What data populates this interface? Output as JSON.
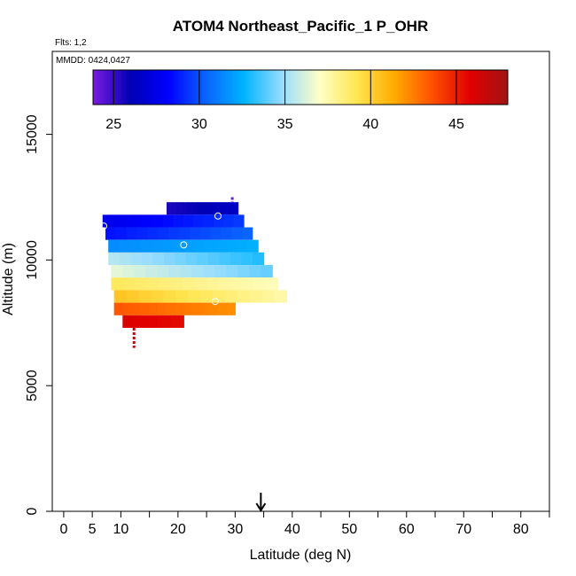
{
  "chart_data": {
    "type": "heatmap",
    "title": "ATOM4 Northeast_Pacific_1 P_OHR",
    "flights_label": "Flts: 1,2",
    "dates_label": "MMDD: 0424,0427",
    "xlabel": "Latitude (deg N)",
    "ylabel": "Altitude (m)",
    "xlim": [
      -2,
      85
    ],
    "ylim": [
      0,
      18300
    ],
    "x_ticks": [
      0,
      5,
      10,
      15,
      20,
      25,
      30,
      35,
      40,
      45,
      50,
      55,
      60,
      65,
      70,
      75,
      80,
      85
    ],
    "x_tick_labels": [
      "0",
      "5",
      "10",
      "20",
      "30",
      "40",
      "50",
      "60",
      "70",
      "80"
    ],
    "x_tick_label_values": [
      0,
      5,
      10,
      20,
      30,
      40,
      50,
      60,
      70,
      80
    ],
    "y_ticks": [
      0,
      5000,
      10000,
      15000
    ],
    "y_tick_labels": [
      "0",
      "5000",
      "10000",
      "15000"
    ],
    "colorbar": {
      "range": [
        23.8,
        48
      ],
      "ticks": [
        25,
        30,
        35,
        40,
        45
      ],
      "tick_labels": [
        "25",
        "30",
        "35",
        "40",
        "45"
      ],
      "colors": [
        "#7a1be0",
        "#0000b4",
        "#0000ff",
        "#0a64ff",
        "#00b4ff",
        "#96dcff",
        "#ffffc8",
        "#ffe650",
        "#ffaa00",
        "#ff5000",
        "#e00000",
        "#a01414"
      ]
    },
    "bands": [
      {
        "alt_bottom": 11800,
        "alt_top": 12300,
        "lat_start": 18,
        "lat_end": 30.5,
        "start_value": 25.5,
        "end_value": 26.5
      },
      {
        "alt_bottom": 11300,
        "alt_top": 11800,
        "lat_start": 6.8,
        "lat_end": 31.5,
        "start_value": 27.5,
        "end_value": 29.5
      },
      {
        "alt_bottom": 10800,
        "alt_top": 11300,
        "lat_start": 7.3,
        "lat_end": 33,
        "start_value": 28.5,
        "end_value": 30.5
      },
      {
        "alt_bottom": 10300,
        "alt_top": 10800,
        "lat_start": 7.8,
        "lat_end": 34,
        "start_value": 31.5,
        "end_value": 32.5
      },
      {
        "alt_bottom": 9800,
        "alt_top": 10300,
        "lat_start": 7.8,
        "lat_end": 35,
        "start_value": 35.5,
        "end_value": 33
      },
      {
        "alt_bottom": 9300,
        "alt_top": 9800,
        "lat_start": 8.3,
        "lat_end": 36.5,
        "start_value": 36.5,
        "end_value": 34
      },
      {
        "alt_bottom": 8800,
        "alt_top": 9300,
        "lat_start": 8.3,
        "lat_end": 37.5,
        "start_value": 39,
        "end_value": 37.2
      },
      {
        "alt_bottom": 8300,
        "alt_top": 8800,
        "lat_start": 8.8,
        "lat_end": 39,
        "start_value": 40.5,
        "end_value": 37.5
      },
      {
        "alt_bottom": 7800,
        "alt_top": 8300,
        "lat_start": 8.8,
        "lat_end": 30,
        "start_value": 43.5,
        "end_value": 42
      },
      {
        "alt_bottom": 7300,
        "alt_top": 7800,
        "lat_start": 10.3,
        "lat_end": 21,
        "start_value": 46,
        "end_value": 45.5
      }
    ],
    "markers": [
      {
        "lat": 27,
        "alt": 11750
      },
      {
        "lat": 7,
        "alt": 11350
      },
      {
        "lat": 21,
        "alt": 10600
      },
      {
        "lat": 26.5,
        "alt": 8350
      },
      {
        "lat": 9,
        "alt": 7600
      }
    ],
    "vertical_segments": [
      {
        "lat": 29.5,
        "alt_bottom": 12300,
        "alt_top": 12500,
        "value": 24
      },
      {
        "lat": 12.3,
        "alt_bottom": 6500,
        "alt_top": 7300,
        "value": 47.5
      }
    ],
    "arrow": {
      "lat": 34.5
    }
  }
}
